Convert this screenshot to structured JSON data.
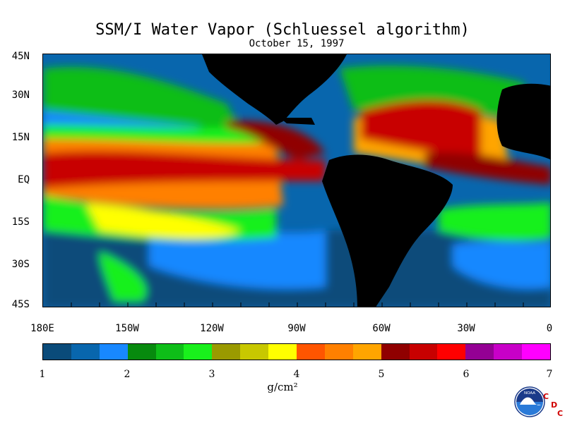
{
  "title": "SSM/I Water Vapor (Schluessel algorithm)",
  "subtitle": "October 15, 1997",
  "lat_labels": [
    "45N",
    "30N",
    "15N",
    "EQ",
    "15S",
    "30S",
    "45S"
  ],
  "lon_labels": [
    "180E",
    "150W",
    "120W",
    "90W",
    "60W",
    "30W",
    "0"
  ],
  "colorbar": {
    "colors": [
      "#0a4b7a",
      "#0866ad",
      "#1888ff",
      "#078a0e",
      "#0ebe18",
      "#19f01c",
      "#9a9a00",
      "#c8c800",
      "#ffff00",
      "#ff5500",
      "#ff8000",
      "#ffa500",
      "#900000",
      "#c80000",
      "#ff0000",
      "#940094",
      "#c800c8",
      "#ff00ff"
    ],
    "tick_labels": [
      "1",
      "2",
      "3",
      "4",
      "5",
      "6",
      "7"
    ],
    "unit": "g/cm²"
  },
  "logo": {
    "icon": "noaa-logo-icon",
    "noaa_text": "NOAA",
    "c1": "C",
    "d": "D",
    "c2": "C"
  }
}
